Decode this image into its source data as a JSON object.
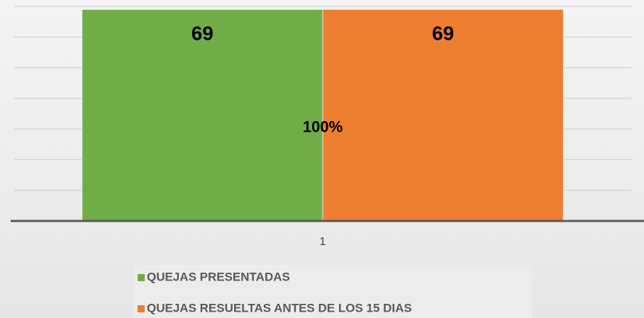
{
  "chart_data": {
    "type": "bar",
    "categories": [
      "1"
    ],
    "series": [
      {
        "name": "QUEJAS PRESENTADAS",
        "color": "#70ad47",
        "values": [
          69
        ]
      },
      {
        "name": "QUEJAS RESUELTAS ANTES DE LOS 15 DIAS",
        "color": "#ed7d31",
        "values": [
          69
        ]
      }
    ],
    "annotation": "100%",
    "ylim": [
      0,
      70
    ],
    "yticks": [
      0,
      10,
      20,
      30,
      40,
      50,
      60,
      70
    ],
    "grid": true,
    "legend": "bottom"
  }
}
